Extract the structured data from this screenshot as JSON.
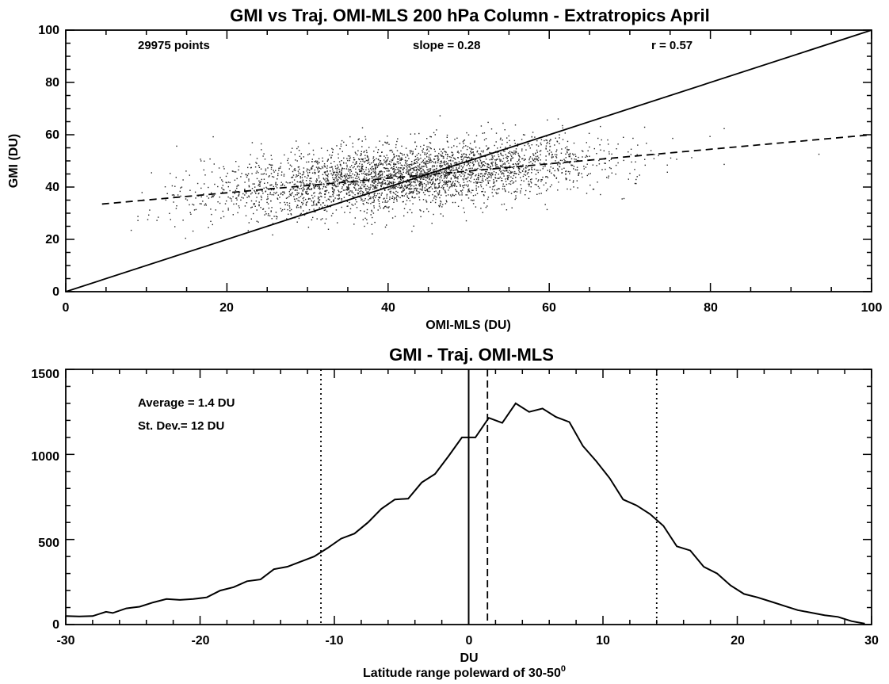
{
  "chart_data": [
    {
      "type": "scatter",
      "title": "GMI vs Traj. OMI-MLS  200 hPa Column - Extratropics April",
      "xlabel": "OMI-MLS (DU)",
      "ylabel": "GMI (DU)",
      "xlim": [
        0,
        100
      ],
      "ylim": [
        0,
        100
      ],
      "xticks": [
        "0",
        "20",
        "40",
        "60",
        "80",
        "100"
      ],
      "yticks": [
        "0",
        "20",
        "40",
        "60",
        "80",
        "100"
      ],
      "annotations": [
        "29975 points",
        "slope = 0.28",
        "r  = 0.57"
      ],
      "n_points": 29975,
      "slope": 0.28,
      "r": 0.57,
      "reference_lines": [
        {
          "style": "solid",
          "x": [
            0,
            100
          ],
          "y": [
            0,
            100
          ]
        },
        {
          "style": "dashed",
          "x": [
            4.5,
            100
          ],
          "y": [
            33.5,
            60
          ]
        }
      ],
      "point_cloud": {
        "center_x": 42,
        "center_y": 44,
        "sd_x": 12,
        "x_range": [
          8,
          100
        ],
        "y_sd_residual": 6.2
      }
    },
    {
      "type": "line",
      "title": "GMI - Traj. OMI-MLS",
      "xlabel": "DU",
      "subtitle": "Latitude range poleward of 30-50",
      "subtitle_sup": "0",
      "xlim": [
        -30,
        30
      ],
      "ylim": [
        0,
        1500
      ],
      "xticks": [
        "-30",
        "-20",
        "-10",
        "0",
        "10",
        "20",
        "30"
      ],
      "yticks": [
        "0",
        "500",
        "1000",
        "1500"
      ],
      "annotations": [
        "Average = 1.4 DU",
        "St. Dev.= 12 DU"
      ],
      "average": 1.4,
      "st_dev": 12,
      "vlines": [
        {
          "style": "dotted",
          "x": -11
        },
        {
          "style": "solid",
          "x": 0
        },
        {
          "style": "dashed",
          "x": 1.4
        },
        {
          "style": "dotted",
          "x": 14
        }
      ],
      "x": [
        -30,
        -29,
        -28,
        -27,
        -26.5,
        -25.5,
        -25,
        -24.5,
        -23.5,
        -22.5,
        -21.5,
        -20.5,
        -19.5,
        -18.5,
        -17.5,
        -16.5,
        -15.5,
        -14.5,
        -13.5,
        -12.5,
        -11.5,
        -10.5,
        -9.5,
        -8.5,
        -7.5,
        -6.5,
        -5.5,
        -4.5,
        -3.5,
        -2.5,
        -1.5,
        -0.5,
        0.5,
        1.5,
        2.5,
        3.5,
        4.5,
        5.5,
        6.5,
        7.5,
        8.5,
        9.5,
        10.5,
        11.5,
        12.5,
        13.5,
        14.5,
        15.5,
        16.5,
        17.5,
        18.5,
        19.5,
        20.5,
        21.5,
        22.5,
        23.5,
        24.5,
        25.5,
        26.5,
        27.5,
        28.5,
        29.5
      ],
      "y": [
        50,
        48,
        50,
        75,
        68,
        95,
        100,
        105,
        130,
        150,
        145,
        150,
        160,
        200,
        220,
        255,
        265,
        325,
        340,
        370,
        400,
        450,
        505,
        535,
        600,
        680,
        735,
        740,
        835,
        885,
        990,
        1100,
        1100,
        1215,
        1185,
        1300,
        1250,
        1270,
        1220,
        1190,
        1050,
        960,
        860,
        735,
        700,
        650,
        580,
        460,
        435,
        340,
        300,
        230,
        180,
        160,
        135,
        110,
        85,
        70,
        55,
        45,
        20,
        5
      ]
    }
  ]
}
